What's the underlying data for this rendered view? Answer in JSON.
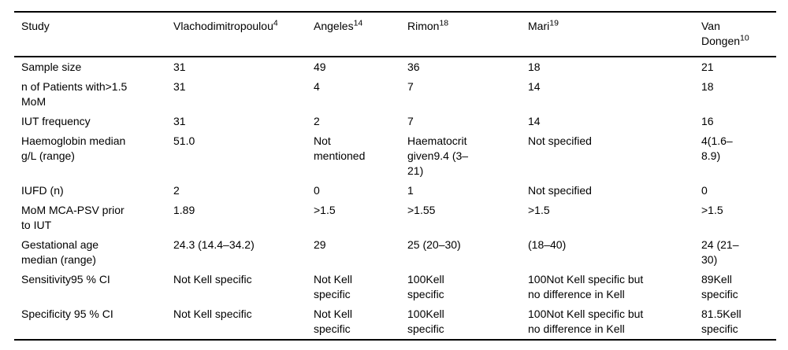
{
  "table": {
    "columns": [
      {
        "label": "Study",
        "sup": ""
      },
      {
        "label": "Vlachodimitropoulou",
        "sup": "4"
      },
      {
        "label": "Angeles",
        "sup": "14"
      },
      {
        "label": "Rimon",
        "sup": "18"
      },
      {
        "label": "Mari",
        "sup": "19"
      },
      {
        "label": "Van\nDongen",
        "sup": "10"
      }
    ],
    "rows": [
      {
        "label": "Sample size",
        "cells": [
          "31",
          "49",
          "36",
          "18",
          "21"
        ]
      },
      {
        "label": "n of Patients with>1.5\nMoM",
        "cells": [
          "31",
          "4",
          "7",
          "14",
          "18"
        ]
      },
      {
        "label": "IUT frequency",
        "cells": [
          "31",
          "2",
          "7",
          "14",
          "16"
        ]
      },
      {
        "label": "Haemoglobin median\ng/L (range)",
        "cells": [
          "51.0",
          "Not\nmentioned",
          "Haematocrit\ngiven9.4 (3–\n21)",
          "Not specified",
          "4(1.6–\n8.9)"
        ]
      },
      {
        "label": "IUFD (n)",
        "cells": [
          "2",
          "0",
          "1",
          "Not specified",
          "0"
        ]
      },
      {
        "label": "MoM MCA-PSV prior\nto IUT",
        "cells": [
          "1.89",
          ">1.5",
          ">1.55",
          ">1.5",
          ">1.5"
        ]
      },
      {
        "label": "Gestational age\nmedian (range)",
        "cells": [
          "24.3 (14.4–34.2)",
          "29",
          "25 (20–30)",
          "(18–40)",
          "24 (21–\n30)"
        ]
      },
      {
        "label": "Sensitivity95 % CI",
        "cells": [
          "Not Kell specific",
          "Not Kell\nspecific",
          "100Kell\nspecific",
          "100Not Kell specific but\nno difference in Kell",
          "89Kell\nspecific"
        ]
      },
      {
        "label": "Specificity 95 % CI",
        "cells": [
          "Not Kell specific",
          "Not Kell\nspecific",
          "100Kell\nspecific",
          "100Not Kell specific but\nno difference in Kell",
          "81.5Kell\nspecific"
        ]
      }
    ]
  }
}
